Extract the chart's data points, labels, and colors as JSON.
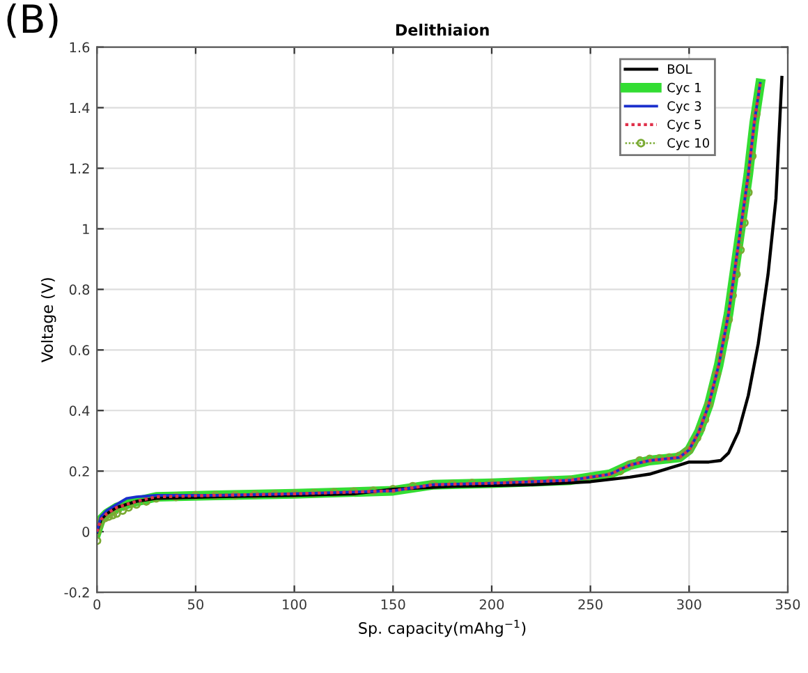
{
  "chart_data": {
    "type": "line",
    "title": "Delithiaion",
    "xlabel": "Sp. capacity(mAhg$^{−1}$)",
    "ylabel": "Voltage (V)",
    "annotations": [
      "(B)"
    ],
    "xlim": [
      0,
      350
    ],
    "ylim": [
      -0.2,
      1.6
    ],
    "xticks": [
      0,
      50,
      100,
      150,
      200,
      250,
      300,
      350
    ],
    "yticks": [
      -0.2,
      0,
      0.2,
      0.4,
      0.6,
      0.8,
      1,
      1.2,
      1.4,
      1.6
    ],
    "grid": true,
    "legend": "top right",
    "series": [
      {
        "name": "BOL",
        "color": "#000000",
        "line_style": "solid",
        "marker": "none",
        "x": [
          0,
          2,
          5,
          10,
          20,
          30,
          60,
          100,
          130,
          150,
          180,
          220,
          250,
          270,
          280,
          290,
          295,
          300,
          310,
          316,
          320,
          325,
          330,
          335,
          340,
          344,
          347
        ],
        "values": [
          0,
          0.04,
          0.06,
          0.08,
          0.1,
          0.11,
          0.115,
          0.12,
          0.125,
          0.14,
          0.15,
          0.155,
          0.165,
          0.18,
          0.19,
          0.21,
          0.22,
          0.23,
          0.23,
          0.235,
          0.26,
          0.33,
          0.45,
          0.62,
          0.85,
          1.1,
          1.5
        ]
      },
      {
        "name": "Cyc 1",
        "color": "#33dd33",
        "line_style": "solid",
        "marker": "none",
        "x": [
          0,
          2,
          5,
          10,
          20,
          30,
          60,
          100,
          150,
          170,
          200,
          240,
          260,
          270,
          280,
          295,
          300,
          305,
          310,
          315,
          320,
          325,
          330,
          333,
          336
        ],
        "values": [
          0,
          0.04,
          0.06,
          0.08,
          0.1,
          0.115,
          0.12,
          0.125,
          0.135,
          0.155,
          0.16,
          0.17,
          0.19,
          0.22,
          0.235,
          0.245,
          0.27,
          0.33,
          0.42,
          0.55,
          0.72,
          0.95,
          1.18,
          1.35,
          1.48
        ]
      },
      {
        "name": "Cyc 3",
        "color": "#1a2fcc",
        "line_style": "solid",
        "marker": "none",
        "x": [
          0,
          2,
          5,
          10,
          15,
          20,
          30,
          60,
          100,
          150,
          170,
          200,
          240,
          260,
          270,
          280,
          295,
          300,
          305,
          310,
          315,
          320,
          325,
          330,
          333,
          336
        ],
        "values": [
          0,
          0.05,
          0.07,
          0.09,
          0.11,
          0.115,
          0.12,
          0.12,
          0.125,
          0.135,
          0.155,
          0.16,
          0.17,
          0.19,
          0.22,
          0.235,
          0.245,
          0.27,
          0.33,
          0.42,
          0.55,
          0.72,
          0.95,
          1.18,
          1.35,
          1.48
        ]
      },
      {
        "name": "Cyc 5",
        "color": "#e0304a",
        "line_style": "dotted",
        "marker": "none",
        "x": [
          0,
          2,
          5,
          10,
          20,
          30,
          60,
          100,
          150,
          170,
          200,
          240,
          260,
          270,
          280,
          295,
          300,
          305,
          310,
          315,
          320,
          325,
          330,
          333,
          336
        ],
        "values": [
          0,
          0.04,
          0.06,
          0.08,
          0.1,
          0.115,
          0.12,
          0.125,
          0.135,
          0.155,
          0.16,
          0.17,
          0.19,
          0.22,
          0.235,
          0.245,
          0.27,
          0.33,
          0.42,
          0.55,
          0.72,
          0.95,
          1.18,
          1.35,
          1.48
        ]
      },
      {
        "name": "Cyc 10",
        "color": "#7aaa33",
        "line_style": "dotted",
        "marker": "circle",
        "x": [
          0,
          0,
          1,
          2,
          4,
          6,
          8,
          10,
          13,
          16,
          20,
          25,
          30,
          40,
          50,
          60,
          70,
          80,
          90,
          100,
          110,
          120,
          130,
          140,
          150,
          160,
          170,
          180,
          190,
          200,
          210,
          220,
          230,
          240,
          250,
          260,
          265,
          270,
          275,
          280,
          285,
          290,
          295,
          298,
          300,
          302,
          304,
          306,
          308,
          310,
          312,
          314,
          316,
          318,
          320,
          322,
          324,
          326,
          328,
          330,
          332,
          334
        ],
        "values": [
          -0.03,
          0,
          0.02,
          0.035,
          0.045,
          0.05,
          0.055,
          0.06,
          0.07,
          0.08,
          0.09,
          0.1,
          0.11,
          0.115,
          0.12,
          0.12,
          0.12,
          0.122,
          0.124,
          0.125,
          0.127,
          0.13,
          0.132,
          0.135,
          0.14,
          0.15,
          0.155,
          0.157,
          0.16,
          0.16,
          0.162,
          0.165,
          0.168,
          0.17,
          0.175,
          0.185,
          0.2,
          0.22,
          0.235,
          0.24,
          0.242,
          0.245,
          0.25,
          0.26,
          0.27,
          0.29,
          0.31,
          0.34,
          0.37,
          0.42,
          0.47,
          0.52,
          0.58,
          0.64,
          0.7,
          0.78,
          0.85,
          0.93,
          1.02,
          1.12,
          1.24,
          1.38
        ]
      }
    ]
  }
}
